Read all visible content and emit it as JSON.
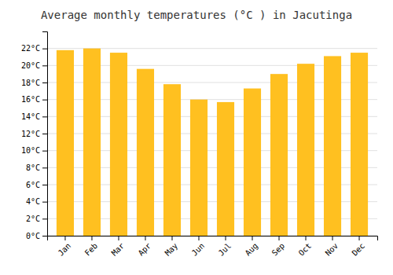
{
  "chart_data": {
    "type": "bar",
    "title": "Average monthly temperatures (°C ) in Jacutinga",
    "categories": [
      "Jan",
      "Feb",
      "Mar",
      "Apr",
      "May",
      "Jun",
      "Jul",
      "Aug",
      "Sep",
      "Oct",
      "Nov",
      "Dec"
    ],
    "values": [
      21.8,
      22.0,
      21.5,
      19.6,
      17.8,
      16.0,
      15.7,
      17.3,
      19.0,
      20.2,
      21.1,
      21.5
    ],
    "color": "#FFC020",
    "ylim": [
      0,
      24
    ],
    "yticks": [
      {
        "value": 0,
        "label": "0°C"
      },
      {
        "value": 2,
        "label": "2°C"
      },
      {
        "value": 4,
        "label": "4°C"
      },
      {
        "value": 6,
        "label": "6°C"
      },
      {
        "value": 8,
        "label": "8°C"
      },
      {
        "value": 10,
        "label": "10°C"
      },
      {
        "value": 12,
        "label": "12°C"
      },
      {
        "value": 14,
        "label": "14°C"
      },
      {
        "value": 16,
        "label": "16°C"
      },
      {
        "value": 18,
        "label": "18°C"
      },
      {
        "value": 20,
        "label": "20°C"
      },
      {
        "value": 22,
        "label": "22°C"
      }
    ],
    "grid": true
  }
}
